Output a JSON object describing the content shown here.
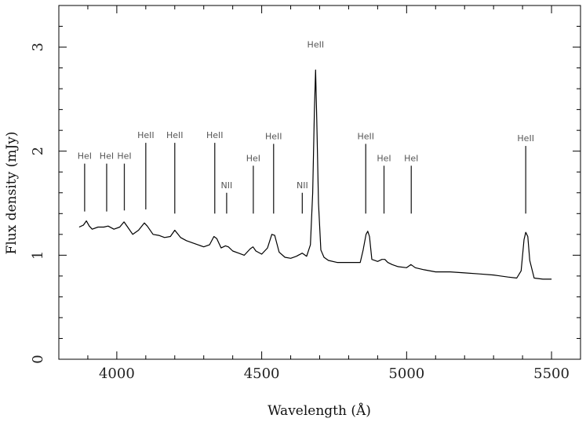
{
  "chart_data": {
    "type": "line",
    "xlabel": "Wavelength (Å)",
    "ylabel": "Flux density (mJy)",
    "xlim": [
      3800,
      5600
    ],
    "ylim": [
      0,
      3.4
    ],
    "x_ticks": [
      4000,
      4500,
      5000,
      5500
    ],
    "y_ticks": [
      0,
      1,
      2,
      3
    ],
    "x_tick_labels": [
      "4000",
      "4500",
      "5000",
      "5500"
    ],
    "y_tick_labels": [
      "0",
      "1",
      "2",
      "3"
    ],
    "grid": false,
    "series": [
      {
        "x": [
          3870,
          3885,
          3895,
          3905,
          3915,
          3935,
          3955,
          3970,
          3990,
          4010,
          4025,
          4040,
          4055,
          4075,
          4095,
          4105,
          4125,
          4145,
          4165,
          4185,
          4200,
          4220,
          4240,
          4260,
          4280,
          4300,
          4320,
          4335,
          4345,
          4360,
          4375,
          4385,
          4400,
          4420,
          4440,
          4460,
          4470,
          4480,
          4500,
          4520,
          4535,
          4545,
          4560,
          4580,
          4600,
          4620,
          4640,
          4655,
          4668,
          4676,
          4682,
          4686,
          4690,
          4696,
          4704,
          4715,
          4730,
          4760,
          4800,
          4840,
          4850,
          4860,
          4866,
          4872,
          4880,
          4900,
          4915,
          4925,
          4935,
          4950,
          4970,
          5000,
          5015,
          5030,
          5060,
          5100,
          5150,
          5200,
          5250,
          5300,
          5350,
          5380,
          5395,
          5405,
          5411,
          5418,
          5425,
          5440,
          5470,
          5500
        ],
        "y": [
          1.27,
          1.29,
          1.33,
          1.28,
          1.25,
          1.27,
          1.27,
          1.28,
          1.25,
          1.27,
          1.32,
          1.26,
          1.2,
          1.24,
          1.31,
          1.28,
          1.2,
          1.19,
          1.17,
          1.18,
          1.24,
          1.17,
          1.14,
          1.12,
          1.1,
          1.08,
          1.1,
          1.18,
          1.16,
          1.07,
          1.09,
          1.08,
          1.04,
          1.02,
          1.0,
          1.06,
          1.08,
          1.04,
          1.01,
          1.07,
          1.2,
          1.19,
          1.03,
          0.98,
          0.97,
          0.99,
          1.02,
          0.99,
          1.1,
          1.6,
          2.4,
          2.78,
          2.3,
          1.5,
          1.05,
          0.98,
          0.95,
          0.93,
          0.93,
          0.93,
          1.05,
          1.2,
          1.23,
          1.18,
          0.96,
          0.94,
          0.96,
          0.96,
          0.93,
          0.91,
          0.89,
          0.88,
          0.91,
          0.88,
          0.86,
          0.84,
          0.84,
          0.83,
          0.82,
          0.81,
          0.79,
          0.78,
          0.85,
          1.15,
          1.22,
          1.18,
          0.95,
          0.78,
          0.77,
          0.77
        ]
      }
    ],
    "annotations": [
      {
        "label": "HeI",
        "x": 3889,
        "y_top": 1.88,
        "y_bottom": 1.42
      },
      {
        "label": "HeI",
        "x": 3965,
        "y_top": 1.88,
        "y_bottom": 1.42
      },
      {
        "label": "HeI",
        "x": 4026,
        "y_top": 1.88,
        "y_bottom": 1.43
      },
      {
        "label": "HeII",
        "x": 4100,
        "y_top": 2.08,
        "y_bottom": 1.44
      },
      {
        "label": "HeII",
        "x": 4200,
        "y_top": 2.08,
        "y_bottom": 1.4
      },
      {
        "label": "HeII",
        "x": 4338,
        "y_top": 2.08,
        "y_bottom": 1.4
      },
      {
        "label": "NII",
        "x": 4379,
        "y_top": 1.6,
        "y_bottom": 1.4
      },
      {
        "label": "HeI",
        "x": 4471,
        "y_top": 1.86,
        "y_bottom": 1.4
      },
      {
        "label": "HeII",
        "x": 4541,
        "y_top": 2.07,
        "y_bottom": 1.4
      },
      {
        "label": "NII",
        "x": 4640,
        "y_top": 1.6,
        "y_bottom": 1.4
      },
      {
        "label": "HeII",
        "x": 4686,
        "y_top": 2.95,
        "y_bottom": 2.95
      },
      {
        "label": "HeII",
        "x": 4859,
        "y_top": 2.07,
        "y_bottom": 1.4
      },
      {
        "label": "HeI",
        "x": 4922,
        "y_top": 1.86,
        "y_bottom": 1.4
      },
      {
        "label": "HeI",
        "x": 5016,
        "y_top": 1.86,
        "y_bottom": 1.4
      },
      {
        "label": "HeII",
        "x": 5411,
        "y_top": 2.05,
        "y_bottom": 1.4
      }
    ]
  }
}
